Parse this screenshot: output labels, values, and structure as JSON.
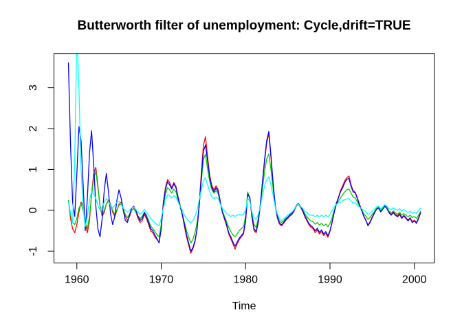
{
  "figure": {
    "title": "Butterworth filter of unemployment: Cycle,drift=TRUE",
    "x_axis_title": "Time"
  },
  "chart_data": {
    "type": "line",
    "title": "Butterworth filter of unemployment: Cycle,drift=TRUE",
    "xlabel": "Time",
    "ylabel": "",
    "grid": false,
    "legend": "none",
    "frequency": "quarterly",
    "x_start": 1959.0,
    "x_step": 0.25,
    "x_end": 2000.75,
    "xlim": [
      1957.29,
      2002.36
    ],
    "ylim": [
      -1.29,
      3.84
    ],
    "x_ticks": [
      1960,
      1970,
      1980,
      1990,
      2000
    ],
    "y_ticks": [
      -1,
      0,
      1,
      2,
      3
    ],
    "series": [
      {
        "name": "red",
        "color": "#FF0000",
        "values": [
          0.25,
          -0.2,
          -0.45,
          -0.55,
          -0.35,
          -0.05,
          0.2,
          0.1,
          -0.3,
          -0.55,
          -0.25,
          0.4,
          0.9,
          1.05,
          0.6,
          0.1,
          -0.15,
          -0.05,
          0.15,
          0.25,
          0.15,
          -0.05,
          -0.15,
          0.0,
          0.15,
          0.2,
          0.05,
          -0.15,
          -0.25,
          -0.15,
          0.0,
          0.05,
          -0.05,
          -0.2,
          -0.3,
          -0.25,
          -0.1,
          -0.2,
          -0.35,
          -0.5,
          -0.55,
          -0.65,
          -0.72,
          -0.78,
          -0.4,
          0.2,
          0.55,
          0.75,
          0.68,
          0.55,
          0.68,
          0.58,
          0.32,
          0.12,
          -0.12,
          -0.4,
          -0.65,
          -0.85,
          -1.05,
          -0.95,
          -0.78,
          -0.45,
          0.15,
          0.9,
          1.6,
          1.8,
          1.3,
          0.85,
          0.6,
          0.5,
          0.6,
          0.5,
          0.22,
          -0.05,
          -0.22,
          -0.38,
          -0.58,
          -0.7,
          -0.82,
          -0.95,
          -0.82,
          -0.72,
          -0.65,
          -0.58,
          -0.28,
          0.42,
          0.32,
          -0.18,
          -0.5,
          -0.55,
          -0.3,
          0.12,
          0.68,
          1.2,
          1.65,
          1.87,
          1.3,
          0.65,
          0.12,
          -0.18,
          -0.33,
          -0.38,
          -0.32,
          -0.25,
          -0.2,
          -0.14,
          -0.1,
          -0.02,
          0.1,
          0.15,
          0.08,
          -0.02,
          -0.15,
          -0.25,
          -0.35,
          -0.42,
          -0.45,
          -0.55,
          -0.48,
          -0.58,
          -0.52,
          -0.62,
          -0.56,
          -0.66,
          -0.52,
          -0.3,
          -0.05,
          0.18,
          0.32,
          0.48,
          0.6,
          0.72,
          0.8,
          0.84,
          0.62,
          0.48,
          0.44,
          0.3,
          0.14,
          0.02,
          -0.14,
          -0.24,
          -0.36,
          -0.28,
          -0.16,
          -0.06,
          0.04,
          0.08,
          -0.02,
          0.04,
          0.12,
          0.06,
          -0.04,
          -0.1,
          -0.04,
          -0.1,
          -0.14,
          -0.08,
          -0.18,
          -0.12,
          -0.18,
          -0.24,
          -0.18,
          -0.28,
          -0.24,
          -0.3,
          -0.18,
          -0.04
        ]
      },
      {
        "name": "green",
        "color": "#00CD00",
        "values": [
          0.25,
          -0.1,
          -0.3,
          -0.35,
          -0.2,
          0.05,
          0.15,
          0.0,
          -0.3,
          -0.45,
          -0.15,
          0.35,
          0.8,
          0.95,
          0.55,
          0.1,
          -0.1,
          0.0,
          0.15,
          0.22,
          0.12,
          0.0,
          -0.1,
          0.02,
          0.12,
          0.15,
          0.02,
          -0.1,
          -0.18,
          -0.1,
          0.0,
          0.04,
          -0.04,
          -0.14,
          -0.2,
          -0.15,
          -0.05,
          -0.12,
          -0.25,
          -0.38,
          -0.45,
          -0.52,
          -0.6,
          -0.65,
          -0.35,
          0.1,
          0.4,
          0.55,
          0.5,
          0.42,
          0.52,
          0.45,
          0.25,
          0.08,
          -0.1,
          -0.3,
          -0.5,
          -0.65,
          -0.8,
          -0.72,
          -0.55,
          -0.3,
          0.1,
          0.7,
          1.25,
          1.37,
          1.0,
          0.7,
          0.5,
          0.42,
          0.48,
          0.4,
          0.18,
          -0.02,
          -0.15,
          -0.28,
          -0.42,
          -0.52,
          -0.6,
          -0.65,
          -0.58,
          -0.5,
          -0.45,
          -0.4,
          -0.15,
          0.45,
          0.3,
          -0.1,
          -0.35,
          -0.42,
          -0.2,
          0.15,
          0.55,
          0.95,
          1.25,
          1.38,
          1.0,
          0.55,
          0.12,
          -0.12,
          -0.25,
          -0.3,
          -0.26,
          -0.2,
          -0.16,
          -0.1,
          -0.06,
          0.0,
          0.12,
          0.16,
          0.1,
          0.02,
          -0.08,
          -0.15,
          -0.22,
          -0.26,
          -0.28,
          -0.34,
          -0.3,
          -0.36,
          -0.32,
          -0.38,
          -0.34,
          -0.4,
          -0.32,
          -0.18,
          0.0,
          0.14,
          0.22,
          0.3,
          0.38,
          0.45,
          0.5,
          0.52,
          0.42,
          0.32,
          0.3,
          0.2,
          0.1,
          0.02,
          -0.08,
          -0.15,
          -0.22,
          -0.18,
          -0.1,
          -0.04,
          0.04,
          0.08,
          0.0,
          0.05,
          0.12,
          0.07,
          -0.02,
          -0.06,
          -0.02,
          -0.06,
          -0.1,
          -0.05,
          -0.12,
          -0.08,
          -0.12,
          -0.16,
          -0.12,
          -0.18,
          -0.15,
          -0.2,
          -0.12,
          -0.02
        ]
      },
      {
        "name": "blue",
        "color": "#0000FF",
        "values": [
          3.62,
          1.6,
          0.2,
          -0.15,
          0.9,
          2.05,
          1.7,
          0.6,
          -0.5,
          0.3,
          1.4,
          1.95,
          1.1,
          0.1,
          -0.45,
          -0.65,
          -0.2,
          0.5,
          0.9,
          0.45,
          -0.1,
          -0.35,
          -0.15,
          0.25,
          0.5,
          0.3,
          0.0,
          -0.25,
          -0.3,
          -0.1,
          0.05,
          0.1,
          0.0,
          -0.15,
          -0.25,
          -0.2,
          -0.05,
          -0.15,
          -0.3,
          -0.45,
          -0.5,
          -0.6,
          -0.7,
          -0.8,
          -0.45,
          0.15,
          0.5,
          0.7,
          0.62,
          0.52,
          0.65,
          0.55,
          0.3,
          0.1,
          -0.1,
          -0.35,
          -0.6,
          -0.8,
          -1.0,
          -0.92,
          -0.75,
          -0.45,
          0.1,
          0.8,
          1.45,
          1.6,
          1.2,
          0.8,
          0.55,
          0.45,
          0.55,
          0.45,
          0.2,
          -0.05,
          -0.2,
          -0.35,
          -0.55,
          -0.65,
          -0.78,
          -0.88,
          -0.78,
          -0.68,
          -0.62,
          -0.55,
          -0.25,
          0.4,
          0.3,
          -0.15,
          -0.45,
          -0.52,
          -0.28,
          0.15,
          0.7,
          1.25,
          1.7,
          1.93,
          1.35,
          0.7,
          0.15,
          -0.15,
          -0.3,
          -0.36,
          -0.3,
          -0.22,
          -0.18,
          -0.12,
          -0.08,
          0.0,
          0.12,
          0.17,
          0.1,
          0.0,
          -0.12,
          -0.22,
          -0.32,
          -0.38,
          -0.42,
          -0.5,
          -0.44,
          -0.54,
          -0.48,
          -0.58,
          -0.52,
          -0.62,
          -0.5,
          -0.28,
          -0.05,
          0.15,
          0.3,
          0.45,
          0.55,
          0.68,
          0.76,
          0.78,
          0.58,
          0.45,
          0.42,
          0.28,
          0.12,
          0.0,
          -0.15,
          -0.25,
          -0.38,
          -0.3,
          -0.18,
          -0.08,
          0.02,
          0.06,
          -0.04,
          0.02,
          0.1,
          0.04,
          -0.06,
          -0.12,
          -0.06,
          -0.12,
          -0.16,
          -0.1,
          -0.2,
          -0.14,
          -0.2,
          -0.26,
          -0.2,
          -0.3,
          -0.26,
          -0.32,
          -0.2,
          -0.06
        ]
      },
      {
        "name": "cyan",
        "color": "#00FFFF",
        "values": [
          0.2,
          -0.05,
          -0.3,
          1.2,
          4.4,
          3.0,
          1.0,
          0.05,
          -0.4,
          -0.15,
          0.25,
          0.45,
          0.4,
          0.28,
          0.12,
          0.0,
          0.08,
          0.2,
          0.28,
          0.22,
          0.12,
          0.06,
          0.12,
          0.2,
          0.22,
          0.15,
          0.05,
          0.0,
          -0.05,
          0.0,
          0.06,
          0.08,
          0.02,
          -0.05,
          -0.1,
          -0.05,
          0.02,
          -0.04,
          -0.12,
          -0.2,
          -0.25,
          -0.3,
          -0.35,
          -0.38,
          -0.2,
          0.05,
          0.25,
          0.38,
          0.35,
          0.3,
          0.36,
          0.32,
          0.2,
          0.1,
          0.0,
          -0.12,
          -0.2,
          -0.26,
          -0.3,
          -0.26,
          -0.15,
          0.0,
          0.25,
          0.5,
          0.72,
          0.8,
          0.62,
          0.45,
          0.32,
          0.28,
          0.32,
          0.28,
          0.15,
          0.05,
          -0.02,
          -0.08,
          -0.12,
          -0.15,
          -0.12,
          -0.15,
          -0.12,
          -0.1,
          -0.12,
          -0.1,
          0.0,
          0.3,
          0.22,
          -0.05,
          -0.18,
          -0.22,
          -0.1,
          0.1,
          0.35,
          0.6,
          0.75,
          0.82,
          0.62,
          0.38,
          0.1,
          -0.08,
          -0.2,
          -0.25,
          -0.22,
          -0.16,
          -0.12,
          -0.08,
          -0.04,
          0.02,
          0.12,
          0.15,
          0.1,
          0.05,
          -0.02,
          -0.06,
          -0.1,
          -0.12,
          -0.12,
          -0.16,
          -0.12,
          -0.16,
          -0.12,
          -0.16,
          -0.12,
          -0.16,
          -0.1,
          0.0,
          0.08,
          0.14,
          0.18,
          0.2,
          0.24,
          0.26,
          0.28,
          0.28,
          0.22,
          0.18,
          0.18,
          0.12,
          0.08,
          0.04,
          0.0,
          -0.04,
          -0.1,
          -0.08,
          -0.02,
          0.02,
          0.08,
          0.1,
          0.04,
          0.08,
          0.14,
          0.1,
          0.04,
          0.02,
          0.06,
          0.02,
          0.0,
          0.04,
          -0.02,
          0.02,
          -0.02,
          -0.06,
          -0.02,
          -0.08,
          -0.04,
          -0.08,
          0.0,
          0.06
        ]
      }
    ]
  }
}
